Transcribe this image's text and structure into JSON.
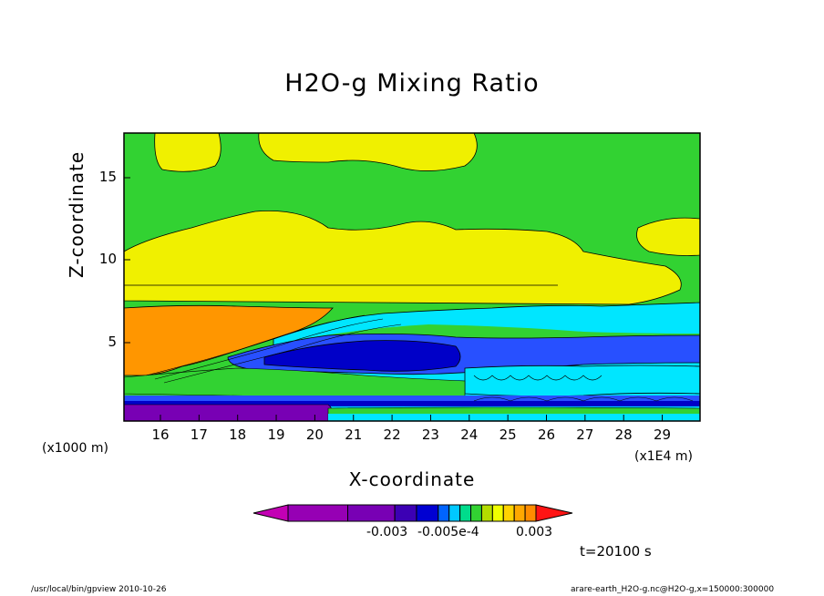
{
  "chart_data": {
    "type": "heatmap",
    "title": "H2O-g Mixing Ratio",
    "xlabel": "X-coordinate",
    "ylabel": "Z-coordinate",
    "x_unit_left": "(x1000 m)",
    "x_unit_right": "(x1E4 m)",
    "x_ticks": [
      "16",
      "17",
      "18",
      "19",
      "20",
      "21",
      "22",
      "23",
      "24",
      "25",
      "26",
      "27",
      "28",
      "29"
    ],
    "y_ticks": [
      "5",
      "10",
      "15"
    ],
    "colorbar": {
      "colors": [
        "#c300b4",
        "#9600b4",
        "#7800b4",
        "#3c00b4",
        "#0000d2",
        "#0064ff",
        "#00c8ff",
        "#00dc8c",
        "#32d232",
        "#b4dc00",
        "#f0ff00",
        "#ffd200",
        "#ffa800",
        "#ff8c00",
        "#ff1414"
      ],
      "labels": [
        "-0.003",
        "-0.005e-4",
        "0.003"
      ]
    },
    "colors": {
      "green": "#32d232",
      "yellow": "#f0f000",
      "orange": "#ff9600",
      "cyan": "#00e6ff",
      "dark_blue": "#0000c8",
      "mid_blue": "#2850ff",
      "purple": "#7800b4"
    },
    "time_label": "t=20100 s"
  },
  "footer": {
    "left": "/usr/local/bin/gpview  2010-10-26",
    "right": "arare-earth_H2O-g.nc@H2O-g,x=150000:300000"
  }
}
